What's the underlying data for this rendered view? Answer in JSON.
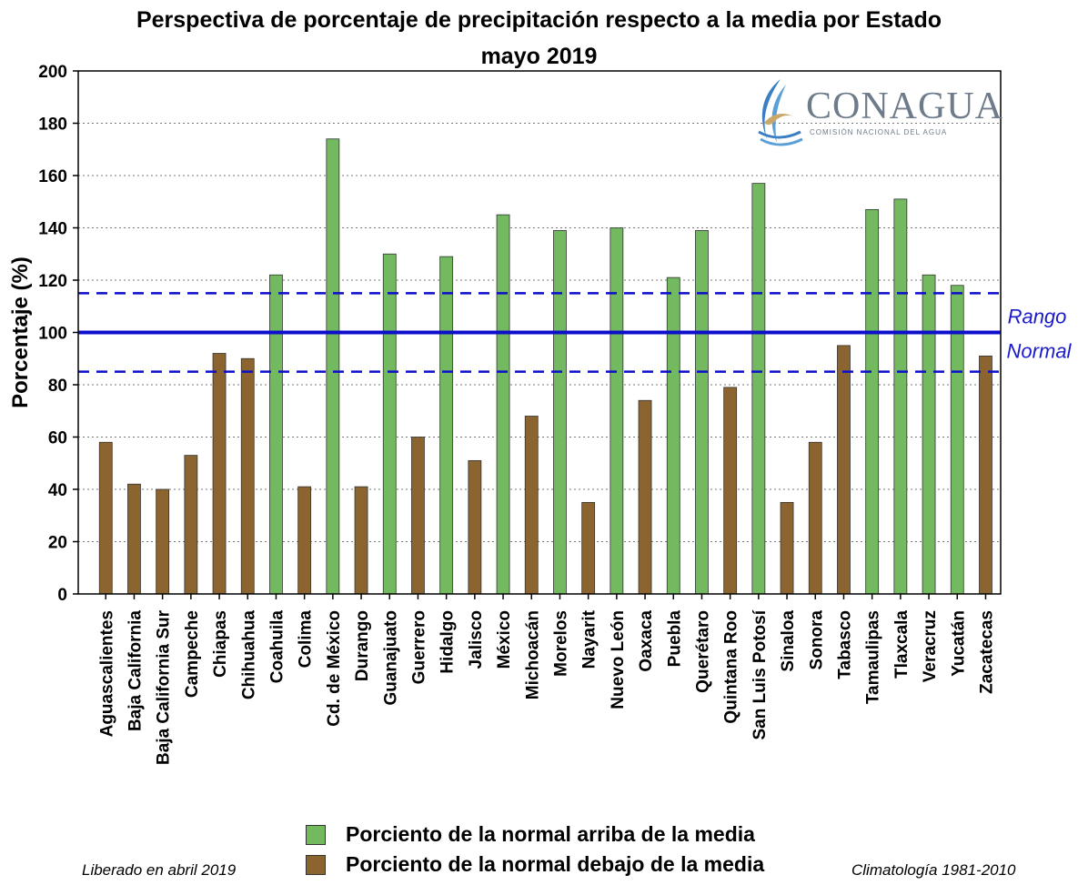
{
  "title_line1": "Perspectiva de porcentaje de precipitación respecto a la media por Estado",
  "title_line2": "mayo 2019",
  "logo": {
    "name": "CONAGUA",
    "subtitle": "COMISIÓN NACIONAL DEL AGUA"
  },
  "range_label": {
    "line1": "Rango",
    "line2": "Normal"
  },
  "legend": {
    "above": "Porciento de la normal arriba de la media",
    "below": "Porciento de la normal debajo de la media"
  },
  "footnote_left": "Liberado en abril 2019",
  "footnote_right": "Climatología 1981-2010",
  "colors": {
    "above": "#72b960",
    "below": "#8b6430",
    "range_line": "#0d0dcc"
  },
  "chart_data": {
    "type": "bar",
    "ylabel": "Porcentaje (%)",
    "ylim": [
      0,
      200
    ],
    "yticks": [
      0,
      20,
      40,
      60,
      80,
      100,
      120,
      140,
      160,
      180,
      200
    ],
    "grid": "horizontal dotted",
    "reference_lines": {
      "normal": 100,
      "upper": 115,
      "lower": 85
    },
    "categories": [
      "Aguascalientes",
      "Baja California",
      "Baja California Sur",
      "Campeche",
      "Chiapas",
      "Chihuahua",
      "Coahuila",
      "Colima",
      "Cd. de México",
      "Durango",
      "Guanajuato",
      "Guerrero",
      "Hidalgo",
      "Jalisco",
      "México",
      "Michoacán",
      "Morelos",
      "Nayarit",
      "Nuevo León",
      "Oaxaca",
      "Puebla",
      "Querétaro",
      "Quintana Roo",
      "San Luis Potosí",
      "Sinaloa",
      "Sonora",
      "Tabasco",
      "Tamaulipas",
      "Tlaxcala",
      "Veracruz",
      "Yucatán",
      "Zacatecas"
    ],
    "values": [
      58,
      42,
      40,
      53,
      92,
      90,
      122,
      41,
      174,
      41,
      130,
      60,
      129,
      51,
      145,
      68,
      139,
      35,
      140,
      74,
      121,
      139,
      79,
      157,
      35,
      58,
      95,
      147,
      151,
      122,
      118,
      91
    ],
    "series_class": [
      "below",
      "below",
      "below",
      "below",
      "below",
      "below",
      "above",
      "below",
      "above",
      "below",
      "above",
      "below",
      "above",
      "below",
      "above",
      "below",
      "above",
      "below",
      "above",
      "below",
      "above",
      "above",
      "below",
      "above",
      "below",
      "below",
      "below",
      "above",
      "above",
      "above",
      "above",
      "below"
    ]
  }
}
